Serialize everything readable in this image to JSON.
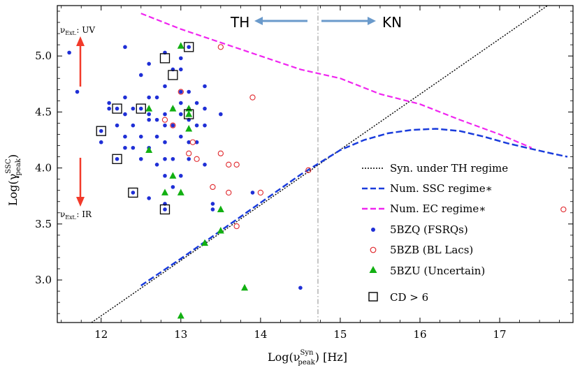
{
  "chart_data": {
    "type": "scatter",
    "title": "",
    "xlabel_base": "Log(ν",
    "xlabel_sup": "Syn",
    "xlabel_sub": "peak",
    "xlabel_tail": ") [Hz]",
    "ylabel_base": "Log(γ",
    "ylabel_sup": "SSC",
    "ylabel_sub": "peak",
    "ylabel_tail": ")",
    "xlim": [
      11.45,
      17.92
    ],
    "ylim": [
      2.62,
      5.45
    ],
    "xticks": [
      "12",
      "13",
      "14",
      "15",
      "16",
      "17"
    ],
    "yticks": [
      "3.0",
      "3.5",
      "4.0",
      "4.5",
      "5.0"
    ],
    "xtick_values": [
      12,
      13,
      14,
      15,
      16,
      17
    ],
    "ytick_values": [
      3.0,
      3.5,
      4.0,
      4.5,
      5.0
    ],
    "regime_divider_x": 14.72,
    "annotations": {
      "th": "TH",
      "kn": "KN",
      "uv": "ν",
      "uv_sub": "Ext.",
      "uv_tail": ": UV",
      "ir": "ν",
      "ir_sub": "Ext.",
      "ir_tail": ": IR"
    },
    "legend_position": "lower-right",
    "colors": {
      "fsrq": "#1f2fd6",
      "bllac": "#e0282d",
      "uncertain": "#12b012",
      "ssc": "#1a3cdc",
      "ec": "#f025f0",
      "syn": "#000000",
      "arrow_red": "#f23a2a",
      "arrow_blue": "#6a9acb",
      "divider": "#a0a0a0"
    },
    "series": [
      {
        "name": "Syn. under TH regime",
        "kind": "line",
        "style": "dotted",
        "x": [
          11.88,
          17.6
        ],
        "y": [
          2.62,
          5.45
        ]
      },
      {
        "name": "Num. SSC regime∗",
        "kind": "line",
        "style": "dashed",
        "x": [
          12.5,
          13.0,
          13.5,
          14.0,
          14.5,
          15.0,
          15.3,
          15.6,
          15.9,
          16.2,
          16.5,
          16.8,
          17.1,
          17.4,
          17.65,
          17.85
        ],
        "y": [
          2.95,
          3.19,
          3.44,
          3.69,
          3.94,
          4.16,
          4.25,
          4.31,
          4.34,
          4.35,
          4.33,
          4.28,
          4.22,
          4.17,
          4.13,
          4.1
        ]
      },
      {
        "name": "Num. EC regime∗",
        "kind": "line",
        "style": "dashed",
        "x": [
          12.5,
          13.0,
          13.5,
          14.0,
          14.5,
          15.0,
          15.5,
          16.0,
          16.5,
          17.0,
          17.4
        ],
        "y": [
          5.38,
          5.24,
          5.12,
          5.0,
          4.88,
          4.8,
          4.66,
          4.57,
          4.43,
          4.3,
          4.18
        ]
      },
      {
        "name": "5BZQ (FSRQs)",
        "kind": "scatter",
        "marker": "dot",
        "points": [
          [
            11.6,
            5.03
          ],
          [
            11.7,
            4.68
          ],
          [
            12.0,
            4.33
          ],
          [
            12.0,
            4.23
          ],
          [
            12.1,
            4.58
          ],
          [
            12.1,
            4.53
          ],
          [
            12.2,
            4.53
          ],
          [
            12.2,
            4.38
          ],
          [
            12.2,
            4.08
          ],
          [
            12.3,
            5.08
          ],
          [
            12.3,
            4.63
          ],
          [
            12.3,
            4.48
          ],
          [
            12.3,
            4.28
          ],
          [
            12.3,
            4.18
          ],
          [
            12.4,
            4.53
          ],
          [
            12.4,
            4.38
          ],
          [
            12.4,
            4.18
          ],
          [
            12.4,
            3.78
          ],
          [
            12.5,
            4.83
          ],
          [
            12.5,
            4.53
          ],
          [
            12.5,
            4.28
          ],
          [
            12.5,
            4.08
          ],
          [
            12.6,
            4.93
          ],
          [
            12.6,
            4.63
          ],
          [
            12.6,
            4.48
          ],
          [
            12.6,
            4.43
          ],
          [
            12.6,
            4.18
          ],
          [
            12.6,
            3.73
          ],
          [
            12.7,
            4.63
          ],
          [
            12.7,
            4.43
          ],
          [
            12.7,
            4.28
          ],
          [
            12.7,
            4.03
          ],
          [
            12.8,
            5.03
          ],
          [
            12.8,
            4.73
          ],
          [
            12.8,
            4.48
          ],
          [
            12.8,
            4.38
          ],
          [
            12.8,
            4.23
          ],
          [
            12.8,
            4.08
          ],
          [
            12.8,
            3.93
          ],
          [
            12.8,
            3.68
          ],
          [
            12.8,
            3.63
          ],
          [
            12.9,
            4.88
          ],
          [
            12.9,
            4.53
          ],
          [
            12.9,
            4.38
          ],
          [
            12.9,
            4.08
          ],
          [
            12.9,
            3.83
          ],
          [
            13.0,
            4.98
          ],
          [
            13.0,
            4.88
          ],
          [
            13.0,
            4.68
          ],
          [
            13.0,
            4.58
          ],
          [
            13.0,
            4.48
          ],
          [
            13.0,
            4.28
          ],
          [
            13.0,
            3.93
          ],
          [
            13.1,
            5.08
          ],
          [
            13.1,
            4.68
          ],
          [
            13.1,
            4.53
          ],
          [
            13.1,
            4.43
          ],
          [
            13.1,
            4.23
          ],
          [
            13.1,
            4.08
          ],
          [
            13.2,
            4.58
          ],
          [
            13.2,
            4.38
          ],
          [
            13.2,
            4.23
          ],
          [
            13.3,
            4.73
          ],
          [
            13.3,
            4.53
          ],
          [
            13.3,
            4.38
          ],
          [
            13.3,
            4.03
          ],
          [
            13.4,
            3.68
          ],
          [
            13.4,
            3.63
          ],
          [
            13.5,
            4.48
          ],
          [
            13.9,
            3.78
          ],
          [
            14.5,
            2.93
          ]
        ]
      },
      {
        "name": "5BZB (BL Lacs)",
        "kind": "scatter",
        "marker": "open-circle",
        "points": [
          [
            12.8,
            4.43
          ],
          [
            12.9,
            4.38
          ],
          [
            13.0,
            4.68
          ],
          [
            13.1,
            4.13
          ],
          [
            13.15,
            4.23
          ],
          [
            13.2,
            4.08
          ],
          [
            13.4,
            3.83
          ],
          [
            13.5,
            5.08
          ],
          [
            13.5,
            4.13
          ],
          [
            13.6,
            4.03
          ],
          [
            13.6,
            3.78
          ],
          [
            13.7,
            4.03
          ],
          [
            13.7,
            3.48
          ],
          [
            13.9,
            4.63
          ],
          [
            14.0,
            3.78
          ],
          [
            14.6,
            3.98
          ],
          [
            17.8,
            3.63
          ]
        ]
      },
      {
        "name": "5BZU (Uncertain)",
        "kind": "scatter",
        "marker": "triangle",
        "points": [
          [
            12.6,
            4.53
          ],
          [
            12.6,
            4.16
          ],
          [
            12.8,
            3.78
          ],
          [
            12.9,
            4.53
          ],
          [
            12.9,
            3.93
          ],
          [
            13.0,
            5.09
          ],
          [
            13.0,
            3.78
          ],
          [
            13.1,
            4.53
          ],
          [
            13.1,
            4.48
          ],
          [
            13.1,
            4.35
          ],
          [
            13.3,
            3.33
          ],
          [
            13.5,
            3.63
          ],
          [
            13.5,
            3.44
          ],
          [
            13.8,
            2.93
          ],
          [
            13.0,
            2.68
          ]
        ]
      },
      {
        "name": "CD > 6",
        "kind": "scatter",
        "marker": "open-square",
        "points": [
          [
            12.0,
            4.33
          ],
          [
            12.2,
            4.53
          ],
          [
            12.2,
            4.08
          ],
          [
            12.4,
            3.78
          ],
          [
            12.5,
            4.53
          ],
          [
            12.8,
            4.98
          ],
          [
            12.8,
            3.63
          ],
          [
            12.9,
            4.83
          ],
          [
            13.1,
            5.08
          ],
          [
            13.1,
            4.48
          ]
        ]
      }
    ]
  }
}
